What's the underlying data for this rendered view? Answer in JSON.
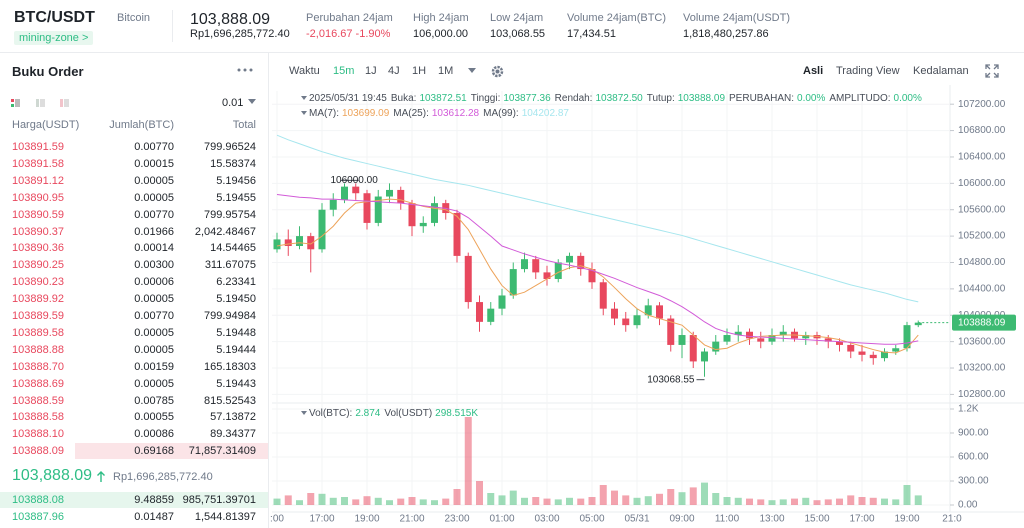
{
  "header": {
    "pair": "BTC/USDT",
    "coin": "Bitcoin",
    "tag": "mining-zone >",
    "price": "103,888.09",
    "price_idr": "Rp1,696,285,772.40",
    "stats": [
      {
        "label": "Perubahan 24jam",
        "value": "-2,016.67 -1.90%"
      },
      {
        "label": "High 24jam",
        "value": "106,000.00"
      },
      {
        "label": "Low 24jam",
        "value": "103,068.55"
      },
      {
        "label": "Volume 24jam(BTC)",
        "value": "17,434.51"
      },
      {
        "label": "Volume 24jam(USDT)",
        "value": "1,818,480,257.86"
      }
    ]
  },
  "order_book": {
    "title": "Buku Order",
    "precision": "0.01",
    "columns": [
      "Harga(USDT)",
      "Jumlah(BTC)",
      "Total"
    ],
    "asks": [
      [
        "103891.59",
        "0.00770",
        "799.96524"
      ],
      [
        "103891.58",
        "0.00015",
        "15.58374"
      ],
      [
        "103891.12",
        "0.00005",
        "5.19456"
      ],
      [
        "103890.95",
        "0.00005",
        "5.19455"
      ],
      [
        "103890.59",
        "0.00770",
        "799.95754"
      ],
      [
        "103890.37",
        "0.01966",
        "2,042.48467"
      ],
      [
        "103890.36",
        "0.00014",
        "14.54465"
      ],
      [
        "103890.25",
        "0.00300",
        "311.67075"
      ],
      [
        "103890.23",
        "0.00006",
        "6.23341"
      ],
      [
        "103889.92",
        "0.00005",
        "5.19450"
      ],
      [
        "103889.59",
        "0.00770",
        "799.94984"
      ],
      [
        "103889.58",
        "0.00005",
        "5.19448"
      ],
      [
        "103888.88",
        "0.00005",
        "5.19444"
      ],
      [
        "103888.70",
        "0.00159",
        "165.18303"
      ],
      [
        "103888.69",
        "0.00005",
        "5.19443"
      ],
      [
        "103888.59",
        "0.00785",
        "815.52543"
      ],
      [
        "103888.58",
        "0.00055",
        "57.13872"
      ],
      [
        "103888.10",
        "0.00086",
        "89.34377"
      ],
      [
        "103888.09",
        "0.69168",
        "71,857.31409"
      ]
    ],
    "mid_price": "103,888.09",
    "mid_price_idr": "Rp1,696,285,772.40",
    "bids": [
      [
        "103888.08",
        "9.48859",
        "985,751.39701"
      ],
      [
        "103887.96",
        "0.01487",
        "1,544.81397"
      ]
    ]
  },
  "toolbar": {
    "label": "Waktu",
    "intervals": [
      "15m",
      "1J",
      "4J",
      "1H",
      "1M"
    ],
    "views": [
      "Asli",
      "Trading View",
      "Kedalaman"
    ]
  },
  "chart_data": {
    "type": "candlestick",
    "info": {
      "time": "2025/05/31 19:45",
      "fields": [
        {
          "label": "Buka:",
          "value": "103872.51"
        },
        {
          "label": "Tinggi:",
          "value": "103877.36"
        },
        {
          "label": "Rendah:",
          "value": "103872.50"
        },
        {
          "label": "Tutup:",
          "value": "103888.09"
        },
        {
          "label": "PERUBAHAN:",
          "value": "0.00%"
        },
        {
          "label": "AMPLITUDO:",
          "value": "0.00%"
        }
      ]
    },
    "volume_info": [
      {
        "label": "Vol(BTC):",
        "value": "2.874"
      },
      {
        "label": "Vol(USDT)",
        "value": "298.515K"
      }
    ],
    "up_color": "#3dba72",
    "down_color": "#e8485e",
    "candles": [
      [
        105000,
        105250,
        104950,
        105150
      ],
      [
        105150,
        105300,
        104900,
        105050
      ],
      [
        105050,
        105350,
        105000,
        105200
      ],
      [
        105200,
        105250,
        104650,
        105000
      ],
      [
        105000,
        105700,
        104950,
        105600
      ],
      [
        105600,
        105850,
        105500,
        105750
      ],
      [
        105750,
        106000,
        105700,
        105950
      ],
      [
        105950,
        106000,
        105750,
        105850
      ],
      [
        105850,
        105900,
        105300,
        105400
      ],
      [
        105400,
        105900,
        105350,
        105800
      ],
      [
        105800,
        106000,
        105700,
        105900
      ],
      [
        105900,
        105950,
        105600,
        105700
      ],
      [
        105700,
        105750,
        105200,
        105350
      ],
      [
        105350,
        105500,
        105250,
        105400
      ],
      [
        105400,
        105800,
        105350,
        105700
      ],
      [
        105700,
        105750,
        105450,
        105550
      ],
      [
        105550,
        105600,
        104800,
        104900
      ],
      [
        104900,
        104950,
        104100,
        104200
      ],
      [
        104200,
        104300,
        103750,
        103900
      ],
      [
        103900,
        104200,
        103850,
        104100
      ],
      [
        104100,
        104400,
        104000,
        104300
      ],
      [
        104300,
        104800,
        104250,
        104700
      ],
      [
        104700,
        104950,
        104650,
        104850
      ],
      [
        104850,
        104900,
        104550,
        104650
      ],
      [
        104650,
        104750,
        104450,
        104550
      ],
      [
        104550,
        104850,
        104500,
        104800
      ],
      [
        104800,
        104950,
        104700,
        104900
      ],
      [
        104900,
        104950,
        104600,
        104700
      ],
      [
        104700,
        104800,
        104400,
        104500
      ],
      [
        104500,
        104550,
        104000,
        104100
      ],
      [
        104100,
        104200,
        103850,
        103950
      ],
      [
        103950,
        104050,
        103750,
        103850
      ],
      [
        103850,
        104100,
        103800,
        104000
      ],
      [
        104000,
        104250,
        103950,
        104150
      ],
      [
        104150,
        104200,
        103850,
        103950
      ],
      [
        103950,
        104000,
        103450,
        103550
      ],
      [
        103550,
        103800,
        103350,
        103700
      ],
      [
        103700,
        103750,
        103200,
        103300
      ],
      [
        103300,
        103500,
        103068.55,
        103450
      ],
      [
        103450,
        103700,
        103400,
        103600
      ],
      [
        103600,
        103800,
        103550,
        103700
      ],
      [
        103700,
        103850,
        103600,
        103750
      ],
      [
        103750,
        103800,
        103550,
        103650
      ],
      [
        103650,
        103750,
        103500,
        103600
      ],
      [
        103600,
        103800,
        103550,
        103700
      ],
      [
        103700,
        103850,
        103600,
        103750
      ],
      [
        103750,
        103800,
        103600,
        103650
      ],
      [
        103650,
        103750,
        103550,
        103700
      ],
      [
        103700,
        103750,
        103550,
        103650
      ],
      [
        103650,
        103700,
        103500,
        103600
      ],
      [
        103600,
        103650,
        103450,
        103550
      ],
      [
        103550,
        103600,
        103350,
        103450
      ],
      [
        103450,
        103550,
        103300,
        103400
      ],
      [
        103400,
        103450,
        103250,
        103350
      ],
      [
        103350,
        103500,
        103300,
        103450
      ],
      [
        103450,
        103550,
        103400,
        103500
      ],
      [
        103500,
        103900,
        103450,
        103850
      ],
      [
        103850,
        103920,
        103820,
        103888.09
      ]
    ],
    "volumes": [
      80,
      120,
      60,
      150,
      140,
      90,
      100,
      70,
      110,
      90,
      60,
      80,
      100,
      70,
      60,
      80,
      200,
      1100,
      300,
      150,
      120,
      180,
      90,
      100,
      80,
      70,
      90,
      80,
      100,
      250,
      180,
      120,
      90,
      110,
      140,
      200,
      160,
      220,
      280,
      150,
      100,
      90,
      80,
      70,
      60,
      70,
      80,
      90,
      60,
      70,
      80,
      120,
      100,
      90,
      80,
      70,
      250,
      120
    ],
    "ma": [
      {
        "name": "MA(7):",
        "color": "#eda35a",
        "values": [
          105050,
          105080,
          105100,
          105080,
          105200,
          105350,
          105550,
          105700,
          105720,
          105740,
          105760,
          105750,
          105700,
          105650,
          105620,
          105600,
          105500,
          105300,
          105000,
          104700,
          104450,
          104300,
          104350,
          104450,
          104550,
          104650,
          104720,
          104750,
          104700,
          104580,
          104420,
          104250,
          104100,
          104000,
          103950,
          103900,
          103850,
          103700,
          103550,
          103480,
          103500,
          103580,
          103640,
          103680,
          103690,
          103700,
          103700,
          103690,
          103680,
          103660,
          103630,
          103580,
          103530,
          103480,
          103440,
          103430,
          103500,
          103699.09
        ]
      },
      {
        "name": "MA(25):",
        "color": "#d25bd8",
        "values": [
          105830,
          105810,
          105790,
          105780,
          105760,
          105760,
          105750,
          105740,
          105730,
          105720,
          105710,
          105700,
          105680,
          105660,
          105640,
          105620,
          105580,
          105480,
          105340,
          105200,
          105050,
          104990,
          104930,
          104880,
          104830,
          104790,
          104760,
          104720,
          104680,
          104620,
          104560,
          104490,
          104420,
          104360,
          104300,
          104220,
          104130,
          104020,
          103900,
          103800,
          103740,
          103700,
          103680,
          103670,
          103660,
          103650,
          103640,
          103630,
          103620,
          103610,
          103600,
          103590,
          103580,
          103570,
          103560,
          103560,
          103580,
          103612.28
        ]
      },
      {
        "name": "MA(99):",
        "color": "#a6e6ee",
        "values": [
          106730,
          106660,
          106600,
          106540,
          106480,
          106430,
          106380,
          106340,
          106300,
          106260,
          106220,
          106180,
          106140,
          106100,
          106060,
          106030,
          106000,
          105970,
          105930,
          105890,
          105850,
          105810,
          105770,
          105730,
          105690,
          105650,
          105610,
          105570,
          105530,
          105490,
          105450,
          105410,
          105370,
          105330,
          105290,
          105250,
          105210,
          105160,
          105110,
          105060,
          105010,
          104960,
          104910,
          104860,
          104810,
          104760,
          104710,
          104660,
          104610,
          104560,
          104510,
          104460,
          104420,
          104380,
          104340,
          104290,
          104240,
          104202.87
        ]
      }
    ],
    "annotations": [
      {
        "value": 106000,
        "label": "106000.00"
      },
      {
        "value": 103068.55,
        "label": "103068.55"
      }
    ],
    "ylim": [
      102700,
      107400
    ],
    "yticks": [
      {
        "value": 102800,
        "label": "102800.00"
      },
      {
        "value": 103200,
        "label": "103200.00"
      },
      {
        "value": 103600,
        "label": "103600.00"
      },
      {
        "value": 104000,
        "label": "104000.00"
      },
      {
        "value": 104400,
        "label": "104400.00"
      },
      {
        "value": 104800,
        "label": "104800.00"
      },
      {
        "value": 105200,
        "label": "105200.00"
      },
      {
        "value": 105600,
        "label": "105600.00"
      },
      {
        "value": 106000,
        "label": "106000.00"
      },
      {
        "value": 106400,
        "label": "106400.00"
      },
      {
        "value": 106800,
        "label": "106800.00"
      },
      {
        "value": 107200,
        "label": "107200.00"
      }
    ],
    "vol_ylim": [
      0,
      1200
    ],
    "vol_yticks": [
      {
        "value": 0,
        "label": "0.00"
      },
      {
        "value": 300,
        "label": "300.00"
      },
      {
        "value": 600,
        "label": "600.00"
      },
      {
        "value": 900,
        "label": "900.00"
      },
      {
        "value": 1200,
        "label": "1.2K"
      }
    ],
    "xticks": [
      {
        "value": 0,
        "label": ":00"
      },
      {
        "value": 4,
        "label": "17:00"
      },
      {
        "value": 8,
        "label": "19:00"
      },
      {
        "value": 12,
        "label": "21:00"
      },
      {
        "value": 16,
        "label": "23:00"
      },
      {
        "value": 20,
        "label": "01:00"
      },
      {
        "value": 24,
        "label": "03:00"
      },
      {
        "value": 28,
        "label": "05:00"
      },
      {
        "value": 32,
        "label": "05/31"
      },
      {
        "value": 36,
        "label": "09:00"
      },
      {
        "value": 40,
        "label": "11:00"
      },
      {
        "value": 44,
        "label": "13:00"
      },
      {
        "value": 48,
        "label": "15:00"
      },
      {
        "value": 52,
        "label": "17:00"
      },
      {
        "value": 56,
        "label": "19:00"
      },
      {
        "value": 60,
        "label": "21:0"
      }
    ],
    "grid": true
  }
}
